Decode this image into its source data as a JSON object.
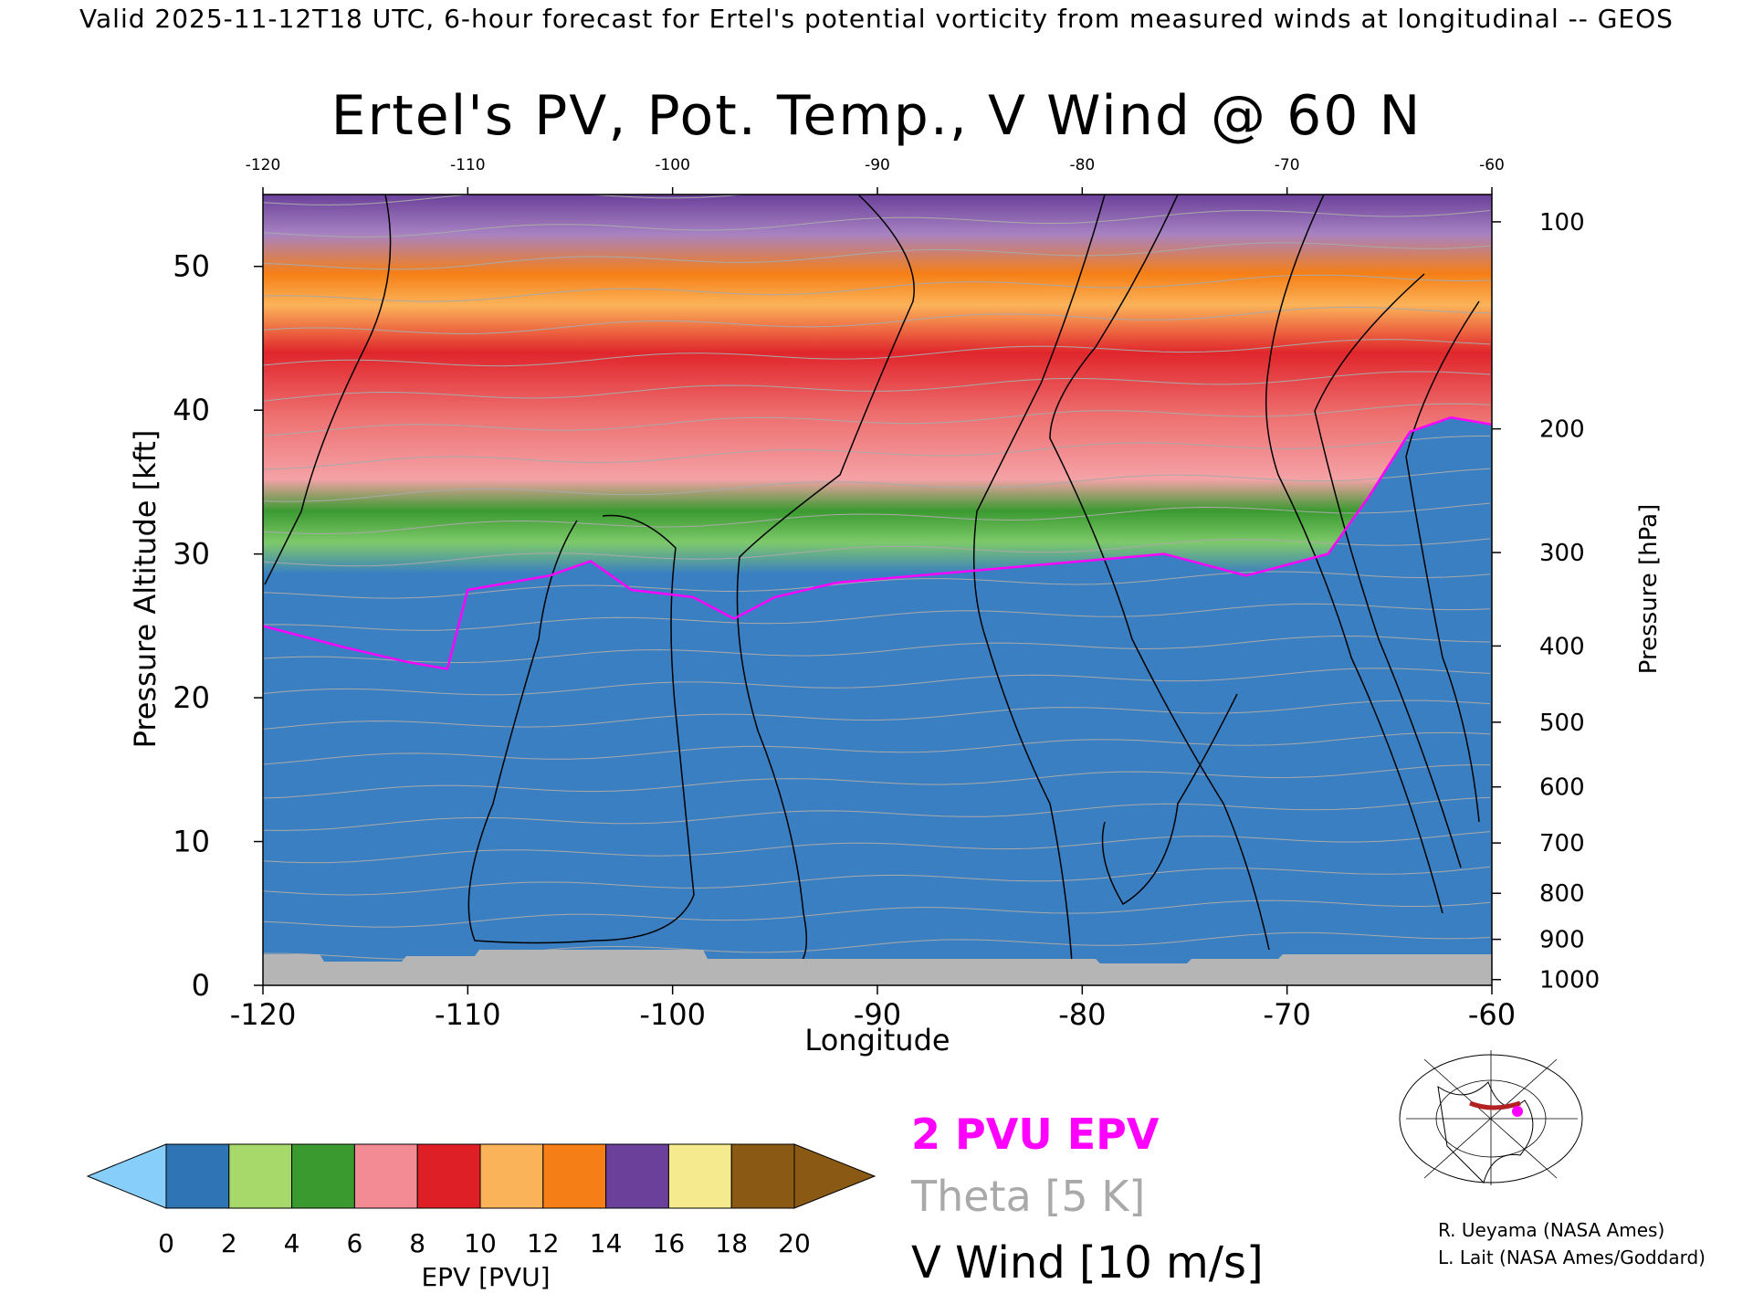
{
  "header": {
    "valid_line": "Valid 2025-11-12T18 UTC, 6-hour forecast for Ertel's potential vorticity from measured winds at longitudinal -- GEOS"
  },
  "chart_data": {
    "type": "heatmap",
    "title": "Ertel's PV, Pot. Temp., V Wind @ 60 N",
    "xlabel": "Longitude",
    "ylabel_left": "Pressure Altitude [kft]",
    "ylabel_right": "Pressure [hPa]",
    "x_range": [
      -120,
      -60
    ],
    "y_range_kft": [
      0,
      55
    ],
    "x_ticks_bottom": [
      "-120",
      "-110",
      "-100",
      "-90",
      "-80",
      "-70",
      "-60"
    ],
    "x_ticks_top": [
      "-120",
      "-110",
      "-100",
      "-90",
      "-80",
      "-70",
      "-60"
    ],
    "y_ticks_left": [
      "0",
      "10",
      "20",
      "30",
      "40",
      "50"
    ],
    "pressure_levels": [
      {
        "label": "100",
        "kft": 53.1
      },
      {
        "label": "200",
        "kft": 38.7
      },
      {
        "label": "300",
        "kft": 30.1
      },
      {
        "label": "400",
        "kft": 23.6
      },
      {
        "label": "500",
        "kft": 18.3
      },
      {
        "label": "600",
        "kft": 13.8
      },
      {
        "label": "700",
        "kft": 9.9
      },
      {
        "label": "800",
        "kft": 6.4
      },
      {
        "label": "900",
        "kft": 3.2
      },
      {
        "label": "1000",
        "kft": 0.4
      }
    ],
    "pv_2_boundary_kft": [
      {
        "lon": -120,
        "kft": 25.0
      },
      {
        "lon": -116,
        "kft": 23.5
      },
      {
        "lon": -113,
        "kft": 22.5
      },
      {
        "lon": -111,
        "kft": 22.0
      },
      {
        "lon": -110,
        "kft": 27.5
      },
      {
        "lon": -106,
        "kft": 28.5
      },
      {
        "lon": -104,
        "kft": 29.5
      },
      {
        "lon": -102,
        "kft": 27.5
      },
      {
        "lon": -99,
        "kft": 27.0
      },
      {
        "lon": -97,
        "kft": 25.5
      },
      {
        "lon": -95,
        "kft": 27.0
      },
      {
        "lon": -92,
        "kft": 28.0
      },
      {
        "lon": -88,
        "kft": 28.5
      },
      {
        "lon": -84,
        "kft": 29.0
      },
      {
        "lon": -80,
        "kft": 29.5
      },
      {
        "lon": -76,
        "kft": 30.0
      },
      {
        "lon": -72,
        "kft": 28.5
      },
      {
        "lon": -68,
        "kft": 30.0
      },
      {
        "lon": -66,
        "kft": 34.0
      },
      {
        "lon": -64,
        "kft": 38.5
      },
      {
        "lon": -62,
        "kft": 39.5
      },
      {
        "lon": -60,
        "kft": 39.0
      }
    ],
    "colorbar": {
      "label": "EPV [PVU]",
      "ticks": [
        "0",
        "2",
        "4",
        "6",
        "8",
        "10",
        "12",
        "14",
        "16",
        "18",
        "20"
      ],
      "bands": [
        {
          "range": [
            0,
            2
          ],
          "color": "#2f74b5"
        },
        {
          "range": [
            2,
            4
          ],
          "color": "#a6d86a"
        },
        {
          "range": [
            4,
            6
          ],
          "color": "#3a9a30"
        },
        {
          "range": [
            6,
            8
          ],
          "color": "#f28b94"
        },
        {
          "range": [
            8,
            10
          ],
          "color": "#de1f26"
        },
        {
          "range": [
            10,
            12
          ],
          "color": "#fbb35a"
        },
        {
          "range": [
            12,
            14
          ],
          "color": "#f57f16"
        },
        {
          "range": [
            14,
            16
          ],
          "color": "#6a409a"
        },
        {
          "range": [
            16,
            18
          ],
          "color": "#f5eb8e"
        },
        {
          "range": [
            18,
            20
          ],
          "color": "#8a5a14"
        }
      ],
      "under_color": "#87cefa",
      "over_color": "#8a5a14"
    },
    "legend": [
      {
        "text": "2 PVU EPV",
        "color": "#ff00ff"
      },
      {
        "text": "Theta [5 K]",
        "color": "#a9a9a9"
      },
      {
        "text": "V Wind [10 m/s]",
        "color": "#000000"
      }
    ]
  },
  "credits": [
    "R. Ueyama (NASA Ames)",
    "L. Lait (NASA Ames/Goddard)"
  ]
}
